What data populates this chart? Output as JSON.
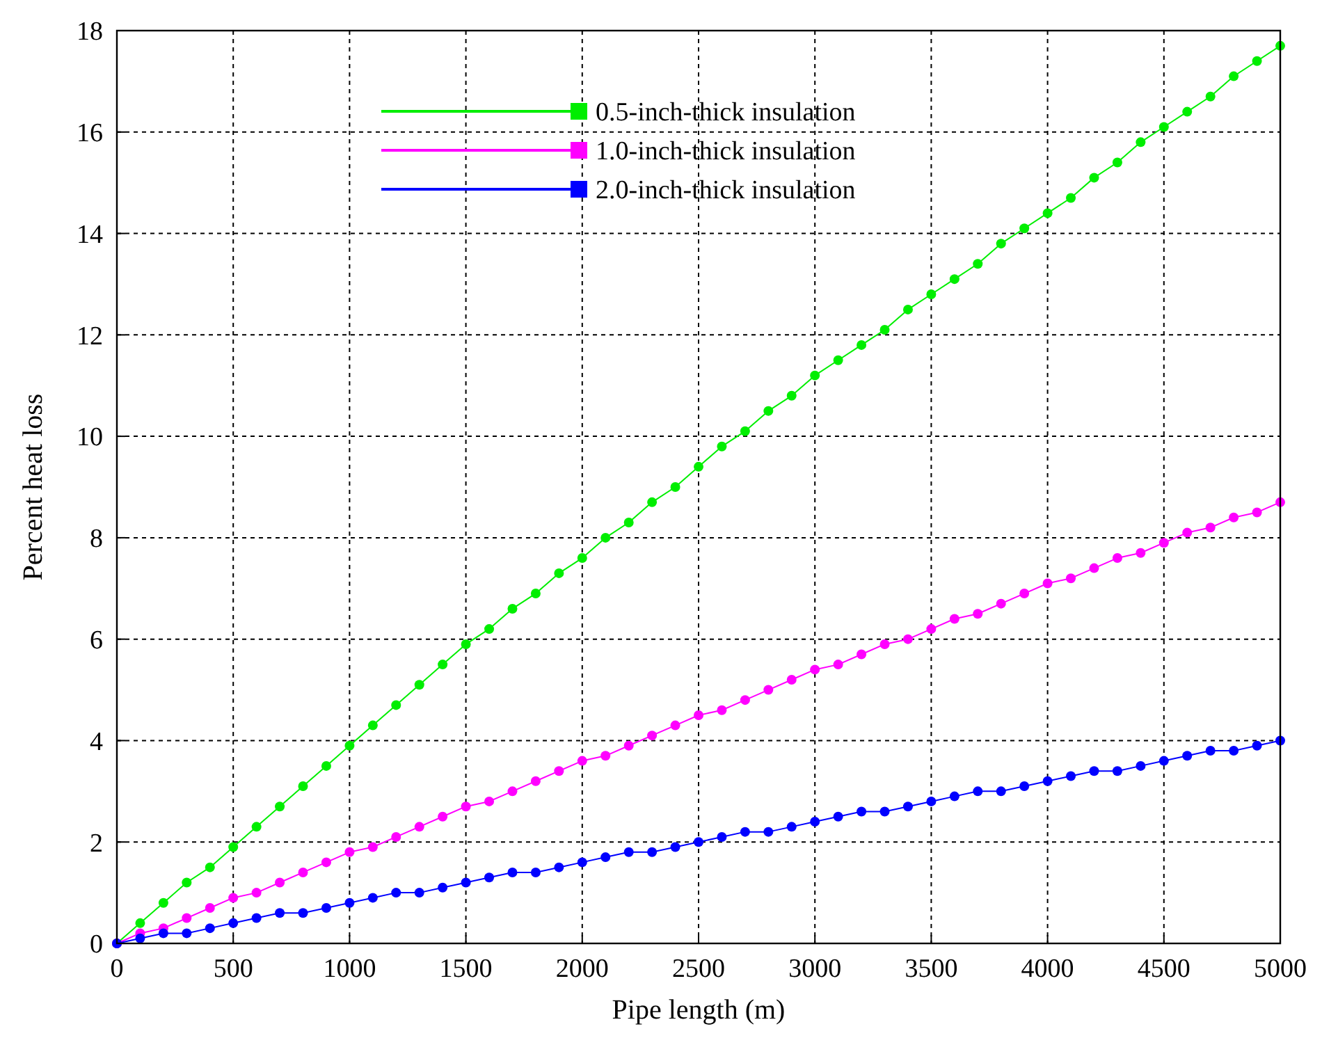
{
  "chart_data": {
    "type": "line",
    "xlabel": "Pipe length (m)",
    "ylabel": "Percent heat loss",
    "x": [
      0,
      100,
      200,
      300,
      400,
      500,
      600,
      700,
      800,
      900,
      1000,
      1100,
      1200,
      1300,
      1400,
      1500,
      1600,
      1700,
      1800,
      1900,
      2000,
      2100,
      2200,
      2300,
      2400,
      2500,
      2600,
      2700,
      2800,
      2900,
      3000,
      3100,
      3200,
      3300,
      3400,
      3500,
      3600,
      3700,
      3800,
      3900,
      4000,
      4100,
      4200,
      4300,
      4400,
      4500,
      4600,
      4700,
      4800,
      4900,
      5000
    ],
    "xlim": [
      0,
      5000
    ],
    "xticks": [
      0,
      500,
      1000,
      1500,
      2000,
      2500,
      3000,
      3500,
      4000,
      4500,
      5000
    ],
    "ylim": [
      0,
      18
    ],
    "yticks": [
      0,
      2,
      4,
      6,
      8,
      10,
      12,
      14,
      16,
      18
    ],
    "grid": true,
    "legend": "top",
    "marker": "circle",
    "series": [
      {
        "name": "0.5-inch-thick insulation",
        "color": "#00ee00",
        "values": [
          0,
          0.4,
          0.8,
          1.2,
          1.5,
          1.9,
          2.3,
          2.7,
          3.1,
          3.5,
          3.9,
          4.3,
          4.7,
          5.1,
          5.5,
          5.9,
          6.2,
          6.6,
          6.9,
          7.3,
          7.6,
          8.0,
          8.3,
          8.7,
          9.0,
          9.4,
          9.8,
          10.1,
          10.5,
          10.8,
          11.2,
          11.5,
          11.8,
          12.1,
          12.5,
          12.8,
          13.1,
          13.4,
          13.8,
          14.1,
          14.4,
          14.7,
          15.1,
          15.4,
          15.8,
          16.1,
          16.4,
          16.7,
          17.1,
          17.4,
          17.7
        ]
      },
      {
        "name": "1.0-inch-thick insulation",
        "color": "#ff00ff",
        "values": [
          0,
          0.2,
          0.3,
          0.5,
          0.7,
          0.9,
          1.0,
          1.2,
          1.4,
          1.6,
          1.8,
          1.9,
          2.1,
          2.3,
          2.5,
          2.7,
          2.8,
          3.0,
          3.2,
          3.4,
          3.6,
          3.7,
          3.9,
          4.1,
          4.3,
          4.5,
          4.6,
          4.8,
          5.0,
          5.2,
          5.4,
          5.5,
          5.7,
          5.9,
          6.0,
          6.2,
          6.4,
          6.5,
          6.7,
          6.9,
          7.1,
          7.2,
          7.4,
          7.6,
          7.7,
          7.9,
          8.1,
          8.2,
          8.4,
          8.5,
          8.7
        ]
      },
      {
        "name": "2.0-inch-thick insulation",
        "color": "#0000ff",
        "values": [
          0,
          0.1,
          0.2,
          0.2,
          0.3,
          0.4,
          0.5,
          0.6,
          0.6,
          0.7,
          0.8,
          0.9,
          1.0,
          1.0,
          1.1,
          1.2,
          1.3,
          1.4,
          1.4,
          1.5,
          1.6,
          1.7,
          1.8,
          1.8,
          1.9,
          2.0,
          2.1,
          2.2,
          2.2,
          2.3,
          2.4,
          2.5,
          2.6,
          2.6,
          2.7,
          2.8,
          2.9,
          3.0,
          3.0,
          3.1,
          3.2,
          3.3,
          3.4,
          3.4,
          3.5,
          3.6,
          3.7,
          3.8,
          3.8,
          3.9,
          4.0
        ]
      }
    ]
  }
}
